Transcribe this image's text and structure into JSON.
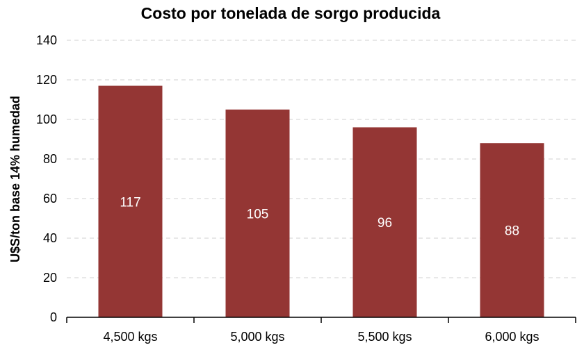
{
  "chart_data": {
    "type": "bar",
    "title": "Costo por tonelada de sorgo producida",
    "xlabel": "",
    "ylabel": "U$S/ton base 14% humedad",
    "categories": [
      "4,500 kgs",
      "5,000 kgs",
      "5,500 kgs",
      "6,000 kgs"
    ],
    "values": [
      117,
      105,
      96,
      88
    ],
    "data_labels": [
      "117",
      "105",
      "96",
      "88"
    ],
    "ylim": [
      0,
      140
    ],
    "yticks": [
      0,
      20,
      40,
      60,
      80,
      100,
      120,
      140
    ],
    "grid": true,
    "legend": "none",
    "colors": {
      "bar": "#943634",
      "data_label": "#ffffff",
      "gridline": "#d9d9d9",
      "axis": "#000000"
    }
  }
}
